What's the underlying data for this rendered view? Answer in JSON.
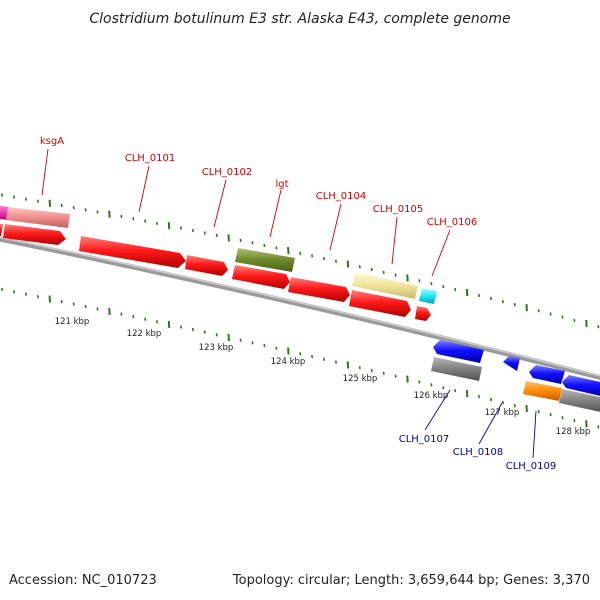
{
  "header": {
    "title": "Clostridium botulinum E3 str. Alaska E43, complete genome"
  },
  "footer": {
    "accession": "Accession: NC_010723",
    "summary": "Topology: circular; Length: 3,659,644 bp; Genes: 3,370"
  },
  "colors": {
    "forward_label": "#cc0000",
    "reverse_label": "#0000aa",
    "backbone": "#777777",
    "tick": "#2a7a1a"
  },
  "scale": {
    "kbp_labels": [
      "121 kbp",
      "122 kbp",
      "123 kbp",
      "124 kbp",
      "125 kbp",
      "126 kbp",
      "127 kbp",
      "128 kbp"
    ]
  },
  "genes_forward": [
    {
      "label": "ksgA",
      "color": "#ff0000"
    },
    {
      "label": "CLH_0101",
      "color": "#ff0000"
    },
    {
      "label": "CLH_0102",
      "color": "#ff0000"
    },
    {
      "label": "lgt",
      "color": "#ff0000"
    },
    {
      "label": "CLH_0104",
      "color": "#ff0000"
    },
    {
      "label": "CLH_0105",
      "color": "#ff0000"
    },
    {
      "label": "CLH_0106",
      "color": "#ff0000"
    }
  ],
  "genes_reverse": [
    {
      "label": "CLH_0107",
      "color": "#0000ff"
    },
    {
      "label": "CLH_0108",
      "color": "#0000ff"
    },
    {
      "label": "CLH_0109",
      "color": "#0000ff"
    }
  ]
}
